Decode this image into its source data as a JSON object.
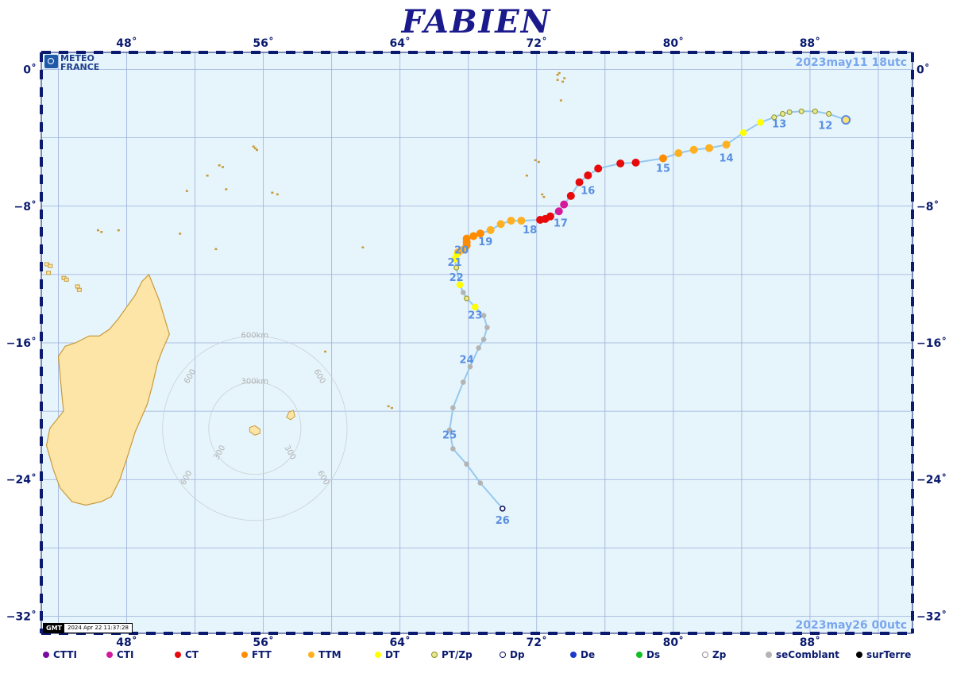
{
  "title": "FABIEN",
  "timestamps": {
    "start": "2023may11  18utc",
    "end": "2023may26  00utc"
  },
  "logo": {
    "line1": "METEO",
    "line2": "FRANCE"
  },
  "gmt_stamp": {
    "label": "GMT",
    "text": "2024 Apr 22 11:37:28"
  },
  "map_extent": {
    "lon_min": 43,
    "lon_max": 94,
    "lat_min": -33,
    "lat_max": 1
  },
  "lon_ticks": [
    {
      "lon": 48,
      "label": "48˚"
    },
    {
      "lon": 56,
      "label": "56˚"
    },
    {
      "lon": 64,
      "label": "64˚"
    },
    {
      "lon": 72,
      "label": "72˚"
    },
    {
      "lon": 80,
      "label": "80˚"
    },
    {
      "lon": 88,
      "label": "88˚"
    }
  ],
  "lat_ticks": [
    {
      "lat": 0,
      "label": "0˚"
    },
    {
      "lat": -8,
      "label": "−8˚"
    },
    {
      "lat": -16,
      "label": "−16˚"
    },
    {
      "lat": -24,
      "label": "−24˚"
    },
    {
      "lat": -32,
      "label": "−32˚"
    }
  ],
  "colors": {
    "ocean": "#e6f5fc",
    "land": "#fde5a8",
    "coast": "#c89a3a",
    "grid": "#9aaed8",
    "track": "#96c8ee",
    "frame": "#0a1a6e",
    "label": "#5a8fe0"
  },
  "categories": {
    "CTTI": "#7a0aa0",
    "CTI": "#d41a9a",
    "CT": "#e80a0a",
    "FTT": "#ff8c00",
    "TTM": "#ffb020",
    "DT": "#ffff00",
    "PTZp": "#e8e890",
    "Dp": "#ffffff",
    "De": "#1a3acc",
    "Ds": "#10c020",
    "Zp": "#e6f5fc",
    "seComblant": "#b4b4b4",
    "surTerre": "#000000"
  },
  "legend": [
    {
      "label": "CTTI",
      "fill": "#7a0aa0",
      "stroke": "#7a0aa0"
    },
    {
      "label": "CTI",
      "fill": "#d41a9a",
      "stroke": "#d41a9a"
    },
    {
      "label": "CT",
      "fill": "#e80a0a",
      "stroke": "#e80a0a"
    },
    {
      "label": "FTT",
      "fill": "#ff8c00",
      "stroke": "#ff8c00"
    },
    {
      "label": "TTM",
      "fill": "#ffb020",
      "stroke": "#ffb020"
    },
    {
      "label": "DT",
      "fill": "#ffff00",
      "stroke": "#ffff00"
    },
    {
      "label": "PT/Zp",
      "fill": "#e8e890",
      "stroke": "#909020"
    },
    {
      "label": "Dp",
      "fill": "#ffffff",
      "stroke": "#101060"
    },
    {
      "label": "De",
      "fill": "#1a3acc",
      "stroke": "#1a3acc"
    },
    {
      "label": "Ds",
      "fill": "#10c020",
      "stroke": "#10c020"
    },
    {
      "label": "Zp",
      "fill": "#ffffff",
      "stroke": "#909090"
    },
    {
      "label": "seComblant",
      "fill": "#b4b4b4",
      "stroke": "#b4b4b4"
    },
    {
      "label": "surTerre",
      "fill": "#000000",
      "stroke": "#000000"
    }
  ],
  "track": [
    {
      "lon": 90.1,
      "lat": -2.95,
      "cat": "PTZp"
    },
    {
      "lon": 89.1,
      "lat": -2.6,
      "cat": "PTZp"
    },
    {
      "lon": 88.3,
      "lat": -2.45,
      "cat": "PTZp"
    },
    {
      "lon": 87.5,
      "lat": -2.45,
      "cat": "PTZp"
    },
    {
      "lon": 86.8,
      "lat": -2.5,
      "cat": "PTZp"
    },
    {
      "lon": 86.4,
      "lat": -2.6,
      "cat": "PTZp"
    },
    {
      "lon": 85.9,
      "lat": -2.8,
      "cat": "PTZp"
    },
    {
      "lon": 85.1,
      "lat": -3.1,
      "cat": "DT"
    },
    {
      "lon": 84.1,
      "lat": -3.7,
      "cat": "DT"
    },
    {
      "lon": 83.1,
      "lat": -4.4,
      "cat": "TTM"
    },
    {
      "lon": 82.1,
      "lat": -4.6,
      "cat": "TTM"
    },
    {
      "lon": 81.2,
      "lat": -4.7,
      "cat": "TTM"
    },
    {
      "lon": 80.3,
      "lat": -4.9,
      "cat": "TTM"
    },
    {
      "lon": 79.4,
      "lat": -5.2,
      "cat": "FTT"
    },
    {
      "lon": 77.8,
      "lat": -5.45,
      "cat": "CT"
    },
    {
      "lon": 76.9,
      "lat": -5.5,
      "cat": "CT"
    },
    {
      "lon": 75.6,
      "lat": -5.8,
      "cat": "CT"
    },
    {
      "lon": 75.0,
      "lat": -6.2,
      "cat": "CT"
    },
    {
      "lon": 74.5,
      "lat": -6.6,
      "cat": "CT"
    },
    {
      "lon": 74.0,
      "lat": -7.4,
      "cat": "CT"
    },
    {
      "lon": 73.6,
      "lat": -7.9,
      "cat": "CTI"
    },
    {
      "lon": 73.3,
      "lat": -8.3,
      "cat": "CTI"
    },
    {
      "lon": 72.8,
      "lat": -8.6,
      "cat": "CT"
    },
    {
      "lon": 72.5,
      "lat": -8.75,
      "cat": "CT"
    },
    {
      "lon": 72.2,
      "lat": -8.8,
      "cat": "CT"
    },
    {
      "lon": 71.1,
      "lat": -8.85,
      "cat": "TTM"
    },
    {
      "lon": 70.5,
      "lat": -8.85,
      "cat": "TTM"
    },
    {
      "lon": 69.9,
      "lat": -9.05,
      "cat": "TTM"
    },
    {
      "lon": 69.3,
      "lat": -9.4,
      "cat": "TTM"
    },
    {
      "lon": 68.7,
      "lat": -9.6,
      "cat": "FTT"
    },
    {
      "lon": 68.3,
      "lat": -9.75,
      "cat": "FTT"
    },
    {
      "lon": 67.9,
      "lat": -9.9,
      "cat": "FTT"
    },
    {
      "lon": 67.9,
      "lat": -10.1,
      "cat": "FTT"
    },
    {
      "lon": 67.9,
      "lat": -10.3,
      "cat": "FTT"
    },
    {
      "lon": 67.7,
      "lat": -10.55,
      "cat": "TTM"
    },
    {
      "lon": 67.4,
      "lat": -10.7,
      "cat": "TTM"
    },
    {
      "lon": 67.3,
      "lat": -10.85,
      "cat": "DT"
    },
    {
      "lon": 67.2,
      "lat": -11.1,
      "cat": "DT"
    },
    {
      "lon": 67.3,
      "lat": -11.6,
      "cat": "PTZp"
    },
    {
      "lon": 67.5,
      "lat": -12.6,
      "cat": "DT"
    },
    {
      "lon": 67.7,
      "lat": -13.05,
      "cat": "seComblant"
    },
    {
      "lon": 67.9,
      "lat": -13.4,
      "cat": "PTZp"
    },
    {
      "lon": 68.4,
      "lat": -13.9,
      "cat": "DT"
    },
    {
      "lon": 68.9,
      "lat": -14.4,
      "cat": "seComblant"
    },
    {
      "lon": 69.1,
      "lat": -15.1,
      "cat": "seComblant"
    },
    {
      "lon": 68.9,
      "lat": -15.8,
      "cat": "seComblant"
    },
    {
      "lon": 68.6,
      "lat": -16.3,
      "cat": "seComblant"
    },
    {
      "lon": 68.1,
      "lat": -17.4,
      "cat": "seComblant"
    },
    {
      "lon": 67.7,
      "lat": -18.3,
      "cat": "seComblant"
    },
    {
      "lon": 67.1,
      "lat": -19.8,
      "cat": "seComblant"
    },
    {
      "lon": 66.9,
      "lat": -21.1,
      "cat": "seComblant"
    },
    {
      "lon": 67.1,
      "lat": -22.2,
      "cat": "seComblant"
    },
    {
      "lon": 67.9,
      "lat": -23.1,
      "cat": "seComblant"
    },
    {
      "lon": 68.7,
      "lat": -24.2,
      "cat": "seComblant"
    },
    {
      "lon": 70.0,
      "lat": -25.7,
      "cat": "Dp"
    }
  ],
  "day_labels": [
    {
      "label": "12",
      "lon": 88.9,
      "lat": -3.3
    },
    {
      "label": "13",
      "lon": 86.2,
      "lat": -3.2
    },
    {
      "label": "14",
      "lon": 83.1,
      "lat": -5.2
    },
    {
      "label": "15",
      "lon": 79.4,
      "lat": -5.8
    },
    {
      "label": "16",
      "lon": 75.0,
      "lat": -7.1
    },
    {
      "label": "17",
      "lon": 73.4,
      "lat": -9.0
    },
    {
      "label": "18",
      "lon": 71.6,
      "lat": -9.4
    },
    {
      "label": "19",
      "lon": 69.0,
      "lat": -10.1
    },
    {
      "label": "20",
      "lon": 67.6,
      "lat": -10.6
    },
    {
      "label": "21",
      "lon": 67.2,
      "lat": -11.3
    },
    {
      "label": "22",
      "lon": 67.3,
      "lat": -12.2
    },
    {
      "label": "23",
      "lon": 68.4,
      "lat": -14.4
    },
    {
      "label": "24",
      "lon": 67.9,
      "lat": -17.0
    },
    {
      "label": "25",
      "lon": 66.9,
      "lat": -21.4
    },
    {
      "label": "26",
      "lon": 70.0,
      "lat": -26.4
    }
  ],
  "range_rings": {
    "center": {
      "lon": 55.5,
      "lat": -21.0
    },
    "rings": [
      {
        "radius_km": 300,
        "labels": [
          "300km",
          "300",
          "300"
        ]
      },
      {
        "radius_km": 600,
        "labels": [
          "600km",
          "600",
          "600"
        ]
      }
    ]
  },
  "land": {
    "madagascar": [
      [
        49.3,
        -12.0
      ],
      [
        49.9,
        -13.5
      ],
      [
        50.5,
        -15.5
      ],
      [
        50.1,
        -16.4
      ],
      [
        49.8,
        -17.2
      ],
      [
        49.5,
        -18.5
      ],
      [
        49.2,
        -19.6
      ],
      [
        48.5,
        -21.2
      ],
      [
        48.0,
        -22.8
      ],
      [
        47.6,
        -24.0
      ],
      [
        47.1,
        -25.0
      ],
      [
        46.5,
        -25.3
      ],
      [
        45.6,
        -25.5
      ],
      [
        44.8,
        -25.3
      ],
      [
        44.1,
        -24.5
      ],
      [
        43.7,
        -23.4
      ],
      [
        43.3,
        -22.0
      ],
      [
        43.5,
        -21.0
      ],
      [
        44.3,
        -20.0
      ],
      [
        44.2,
        -19.0
      ],
      [
        44.1,
        -17.9
      ],
      [
        44.0,
        -16.8
      ],
      [
        44.4,
        -16.2
      ],
      [
        45.0,
        -16.0
      ],
      [
        45.8,
        -15.6
      ],
      [
        46.4,
        -15.6
      ],
      [
        47.0,
        -15.2
      ],
      [
        47.5,
        -14.6
      ],
      [
        48.0,
        -13.9
      ],
      [
        48.5,
        -13.2
      ],
      [
        48.9,
        -12.4
      ],
      [
        49.3,
        -12.0
      ]
    ],
    "reunion": [
      [
        55.2,
        -20.95
      ],
      [
        55.5,
        -20.85
      ],
      [
        55.8,
        -21.05
      ],
      [
        55.8,
        -21.3
      ],
      [
        55.5,
        -21.4
      ],
      [
        55.2,
        -21.2
      ],
      [
        55.2,
        -20.95
      ]
    ],
    "mauritius": [
      [
        57.5,
        -20.05
      ],
      [
        57.75,
        -19.95
      ],
      [
        57.85,
        -20.3
      ],
      [
        57.6,
        -20.5
      ],
      [
        57.35,
        -20.35
      ],
      [
        57.5,
        -20.05
      ]
    ],
    "comoros": [
      [
        43.3,
        -11.4
      ],
      [
        43.5,
        -11.5
      ],
      [
        43.4,
        -11.9
      ],
      [
        44.3,
        -12.2
      ],
      [
        44.45,
        -12.3
      ],
      [
        45.1,
        -12.7
      ],
      [
        45.2,
        -12.9
      ]
    ],
    "islets": [
      [
        55.5,
        -4.6
      ],
      [
        55.6,
        -4.7
      ],
      [
        55.4,
        -4.5
      ],
      [
        53.4,
        -5.6
      ],
      [
        53.6,
        -5.7
      ],
      [
        52.7,
        -6.2
      ],
      [
        51.5,
        -7.1
      ],
      [
        53.8,
        -7.0
      ],
      [
        56.5,
        -7.2
      ],
      [
        56.8,
        -7.3
      ],
      [
        46.3,
        -9.4
      ],
      [
        46.5,
        -9.5
      ],
      [
        47.5,
        -9.4
      ],
      [
        51.1,
        -9.6
      ],
      [
        53.2,
        -10.5
      ],
      [
        59.6,
        -16.5
      ],
      [
        63.3,
        -19.7
      ],
      [
        63.5,
        -19.8
      ],
      [
        72.3,
        -7.3
      ],
      [
        72.4,
        -7.45
      ],
      [
        71.4,
        -6.2
      ],
      [
        71.9,
        -5.3
      ],
      [
        73.3,
        -0.2
      ],
      [
        73.2,
        -0.6
      ],
      [
        73.5,
        -0.7
      ],
      [
        73.4,
        -1.8
      ],
      [
        73.2,
        -0.3
      ],
      [
        73.6,
        -0.5
      ],
      [
        72.1,
        -5.4
      ],
      [
        61.8,
        -10.4
      ]
    ]
  }
}
